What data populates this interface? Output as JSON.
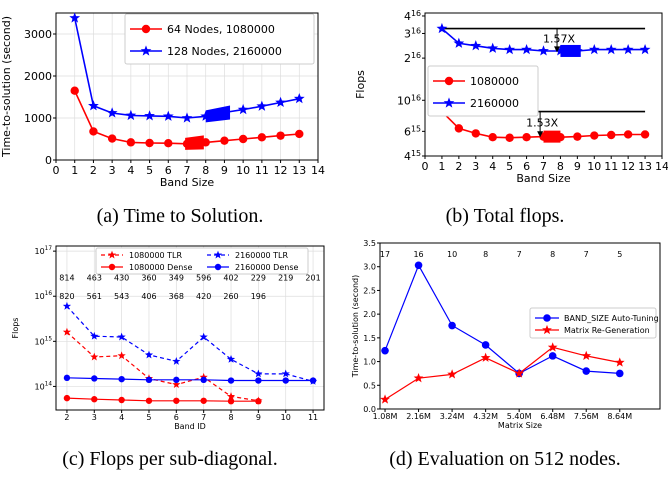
{
  "charts": [
    {
      "type": "line",
      "xlabel": "Band Size",
      "ylabel": "Time-to-solution (second)",
      "xlim": [
        0,
        14
      ],
      "ylim": [
        0,
        3500
      ],
      "xticks": [
        0,
        1,
        2,
        3,
        4,
        5,
        6,
        7,
        8,
        9,
        10,
        11,
        12,
        13,
        14
      ],
      "yticks": [
        0,
        1000,
        2000,
        3000
      ],
      "x": [
        1,
        2,
        3,
        4,
        5,
        6,
        7,
        8,
        9,
        10,
        11,
        12,
        13
      ],
      "series": [
        {
          "name": "64 Nodes, 1080000",
          "color": "#ff0000",
          "marker": "circle",
          "values": [
            1650,
            680,
            510,
            420,
            405,
            400,
            385,
            420,
            460,
            500,
            540,
            580,
            620
          ]
        },
        {
          "name": "128 Nodes, 2160000",
          "color": "#0000ff",
          "marker": "star",
          "values": [
            3380,
            1290,
            1120,
            1060,
            1050,
            1040,
            1000,
            1040,
            1130,
            1200,
            1280,
            1370,
            1460
          ]
        }
      ],
      "highlights": [
        {
          "series": 0,
          "x0": 6.9,
          "x1": 7.9,
          "color": "#ff0000"
        },
        {
          "series": 1,
          "x0": 8.0,
          "x1": 9.3,
          "color": "#0000ff"
        }
      ],
      "legend_loc": "top-right"
    },
    {
      "type": "line",
      "xlabel": "Band Size",
      "ylabel": "Flops",
      "yscale": "log",
      "xlim": [
        0,
        14
      ],
      "ylim": [
        4000000000000000.0,
        4.2e+16
      ],
      "xticks": [
        0,
        1,
        2,
        3,
        4,
        5,
        6,
        7,
        8,
        9,
        10,
        11,
        12,
        13,
        14
      ],
      "yticks": [
        {
          "v": 4000000000000000.0,
          "m": "4",
          "e": "15"
        },
        {
          "v": 6000000000000000.0,
          "m": "6",
          "e": "15"
        },
        {
          "v": 1e+16,
          "m": "10",
          "e": "16"
        },
        {
          "v": 2e+16,
          "m": "2",
          "e": "16"
        },
        {
          "v": 3e+16,
          "m": "3",
          "e": "16"
        },
        {
          "v": 4e+16,
          "m": "4",
          "e": "16"
        }
      ],
      "x": [
        1,
        2,
        3,
        4,
        5,
        6,
        7,
        8,
        9,
        10,
        11,
        12,
        13
      ],
      "series": [
        {
          "name": "1080000",
          "color": "#ff0000",
          "marker": "circle",
          "values": [
            8300000000000000.0,
            6300000000000000.0,
            5800000000000000.0,
            5450000000000000.0,
            5400000000000000.0,
            5450000000000000.0,
            5500000000000000.0,
            5450000000000000.0,
            5500000000000000.0,
            5600000000000000.0,
            5650000000000000.0,
            5700000000000000.0,
            5700000000000000.0
          ]
        },
        {
          "name": "2160000",
          "color": "#0000ff",
          "marker": "star",
          "values": [
            3.25e+16,
            2.55e+16,
            2.45e+16,
            2.35e+16,
            2.3e+16,
            2.3e+16,
            2.25e+16,
            2.25e+16,
            2.25e+16,
            2.3e+16,
            2.3e+16,
            2.3e+16,
            2.3e+16
          ]
        }
      ],
      "hlines": [
        {
          "y": 3.25e+16,
          "x0": 1,
          "x1": 13
        },
        {
          "y": 8300000000000000.0,
          "x0": 1,
          "x1": 13
        }
      ],
      "arrows": [
        {
          "x": 7.8,
          "y_top": 3.25e+16,
          "y_bot": 2.2e+16,
          "label": "1.57X"
        },
        {
          "x": 6.8,
          "y_top": 8300000000000000.0,
          "y_bot": 5450000000000000.0,
          "label": "1.53X"
        }
      ],
      "highlights": [
        {
          "series": 0,
          "x0": 7.0,
          "x1": 8.0,
          "color": "#ff0000"
        },
        {
          "series": 1,
          "x0": 8.0,
          "x1": 9.2,
          "color": "#0000ff"
        }
      ],
      "legend_loc": "center-left"
    },
    {
      "type": "line",
      "xlabel": "Band ID",
      "ylabel": "Flops",
      "yscale": "log",
      "xlim": [
        1.6,
        11.4
      ],
      "ylim": [
        30000000000000.0,
        1.3e+17
      ],
      "xticks": [
        2,
        3,
        4,
        5,
        6,
        7,
        8,
        9,
        10,
        11
      ],
      "yticks": [
        {
          "v": 100000000000000.0,
          "m": "10",
          "e": "14"
        },
        {
          "v": 1000000000000000.0,
          "m": "10",
          "e": "15"
        },
        {
          "v": 1e+16,
          "m": "10",
          "e": "16"
        },
        {
          "v": 1e+17,
          "m": "10",
          "e": "17"
        }
      ],
      "series": [
        {
          "name": "1080000 TLR",
          "color": "#ff0000",
          "marker": "star",
          "dash": true,
          "x": [
            2,
            3,
            4,
            5,
            6,
            7,
            8,
            9
          ],
          "values": [
            1600000000000000.0,
            450000000000000.0,
            480000000000000.0,
            150000000000000.0,
            110000000000000.0,
            160000000000000.0,
            60000000000000.0,
            48000000000000.0
          ]
        },
        {
          "name": "2160000 TLR",
          "color": "#0000ff",
          "marker": "star",
          "dash": true,
          "x": [
            2,
            3,
            4,
            5,
            6,
            7,
            8,
            9,
            10,
            11
          ],
          "values": [
            6000000000000000.0,
            1300000000000000.0,
            1250000000000000.0,
            500000000000000.0,
            360000000000000.0,
            1250000000000000.0,
            400000000000000.0,
            190000000000000.0,
            190000000000000.0,
            130000000000000.0
          ]
        },
        {
          "name": "1080000 Dense",
          "color": "#ff0000",
          "marker": "circle",
          "dash": false,
          "x": [
            2,
            3,
            4,
            5,
            6,
            7,
            8,
            9
          ],
          "values": [
            55000000000000.0,
            52000000000000.0,
            50000000000000.0,
            48000000000000.0,
            48000000000000.0,
            48000000000000.0,
            47000000000000.0,
            47000000000000.0
          ]
        },
        {
          "name": "2160000 Dense",
          "color": "#0000ff",
          "marker": "circle",
          "dash": false,
          "x": [
            2,
            3,
            4,
            5,
            6,
            7,
            8,
            9,
            10,
            11
          ],
          "values": [
            155000000000000.0,
            150000000000000.0,
            145000000000000.0,
            140000000000000.0,
            140000000000000.0,
            140000000000000.0,
            135000000000000.0,
            135000000000000.0,
            135000000000000.0,
            135000000000000.0
          ]
        }
      ],
      "annotations": [
        {
          "color": "#0000ff",
          "y": 2.6e+16,
          "x": [
            2,
            3,
            4,
            5,
            6,
            7,
            8,
            9,
            10,
            11
          ],
          "labels": [
            "814",
            "463",
            "430",
            "360",
            "349",
            "596",
            "402",
            "229",
            "219",
            "201"
          ]
        },
        {
          "color": "#ff0000",
          "y": 1.02e+16,
          "x": [
            2,
            3,
            4,
            5,
            6,
            7,
            8,
            9
          ],
          "labels": [
            "820",
            "561",
            "543",
            "406",
            "368",
            "420",
            "260",
            "196"
          ]
        }
      ],
      "legend_loc": "top"
    },
    {
      "type": "line",
      "xlabel": "Matrix Size",
      "ylabel": "Time-to-solution (second)",
      "xlim": [
        0.85,
        9.2
      ],
      "ylim": [
        0,
        3.5
      ],
      "categories": [
        "1.08M",
        "2.16M",
        "3.24M",
        "4.32M",
        "5.40M",
        "6.48M",
        "7.56M",
        "8.64M"
      ],
      "yticks": [
        0.0,
        0.5,
        1.0,
        1.5,
        2.0,
        2.5,
        3.0,
        3.5
      ],
      "top_labels": [
        "17",
        "16",
        "10",
        "8",
        "7",
        "8",
        "7",
        "5"
      ],
      "series": [
        {
          "name": "BAND_SIZE Auto-Tuning",
          "color": "#0000ff",
          "marker": "circle",
          "values": [
            1.23,
            3.03,
            1.76,
            1.35,
            0.75,
            1.12,
            0.8,
            0.75
          ]
        },
        {
          "name": "Matrix Re-Generation",
          "color": "#ff0000",
          "marker": "star",
          "values": [
            0.2,
            0.65,
            0.73,
            1.08,
            0.75,
            1.3,
            1.12,
            0.98
          ]
        }
      ],
      "legend_loc": "center-right"
    }
  ],
  "captions": [
    "(a) Time to Solution.",
    "(b) Total flops.",
    "(c) Flops per sub-diagonal.",
    "(d) Evaluation on 512 nodes."
  ]
}
